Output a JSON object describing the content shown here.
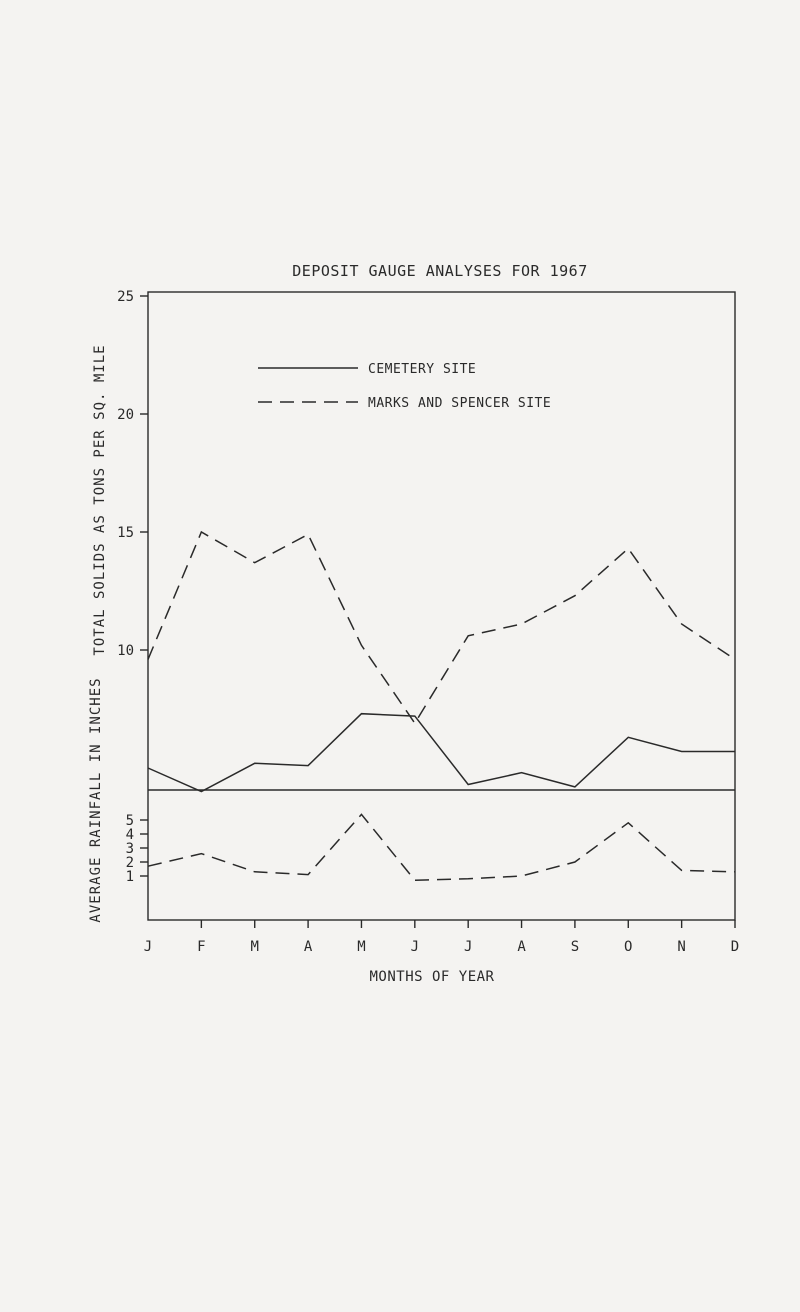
{
  "chart_data": {
    "type": "line",
    "title": "DEPOSIT GAUGE ANALYSES FOR 1967",
    "xlabel": "MONTHS OF YEAR",
    "categories": [
      "J",
      "F",
      "M",
      "A",
      "M",
      "J",
      "J",
      "A",
      "S",
      "O",
      "N",
      "D"
    ],
    "legend": {
      "placement": "top-center",
      "entries": [
        "CEMETERY SITE",
        "MARKS AND SPENCER SITE"
      ]
    },
    "upper_panel": {
      "ylabel": "TOTAL SOLIDS AS TONS PER SQ. MILE",
      "yticks": [
        "10",
        "15",
        "20",
        "25"
      ],
      "ytick_values": [
        10,
        15,
        20,
        25
      ],
      "series": [
        {
          "name": "CEMETERY SITE",
          "style": "solid",
          "values": [
            5.0,
            4.0,
            5.2,
            5.1,
            7.3,
            7.2,
            4.3,
            4.8,
            4.2,
            6.3,
            5.7,
            5.7
          ]
        },
        {
          "name": "MARKS AND SPENCER SITE",
          "style": "dashed",
          "values": [
            9.6,
            15.0,
            13.7,
            14.9,
            10.2,
            6.9,
            10.6,
            11.1,
            12.3,
            14.3,
            11.1,
            9.6
          ]
        }
      ]
    },
    "lower_panel": {
      "ylabel": "AVERAGE RAINFALL IN INCHES",
      "yticks": [
        "1",
        "2",
        "3",
        "4",
        "5"
      ],
      "ytick_values": [
        1,
        2,
        3,
        4,
        5
      ],
      "series": [
        {
          "name": "",
          "style": "dashed",
          "values": [
            1.7,
            2.6,
            1.3,
            1.1,
            5.4,
            0.7,
            0.8,
            1.0,
            2.0,
            4.8,
            1.4,
            1.3
          ]
        }
      ]
    }
  }
}
